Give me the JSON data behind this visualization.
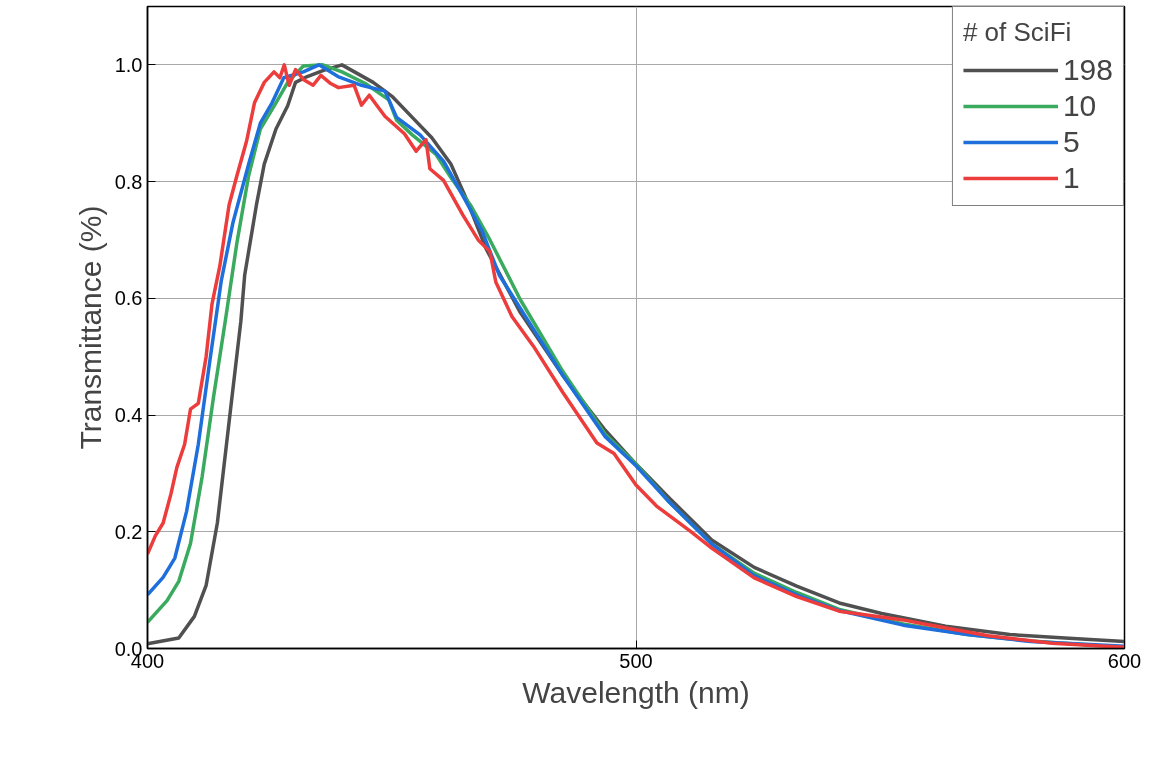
{
  "chart_data": {
    "type": "line",
    "xlabel": "Wavelength (nm)",
    "ylabel": "Transmittance (%)",
    "legend_title": "# of SciFi",
    "legend": "top right",
    "grid": true,
    "line_style": "solid",
    "marker": "none",
    "xlim": [
      400,
      600
    ],
    "ylim": [
      0,
      1.1
    ],
    "xticks": [
      400,
      500,
      600
    ],
    "yticks": [
      {
        "value": 0,
        "label": "0.0"
      },
      {
        "value": 0.2,
        "label": "0.2"
      },
      {
        "value": 0.4,
        "label": "0.4"
      },
      {
        "value": 0.6,
        "label": "0.6"
      },
      {
        "value": 0.8,
        "label": "0.8"
      },
      {
        "value": 1,
        "label": "1.0"
      }
    ],
    "series": [
      {
        "name": "198",
        "color": "#505050",
        "x": [
          400,
          406.4,
          409.6,
          412,
          414.3,
          416.7,
          419.1,
          419.9,
          422.3,
          423.9,
          426.3,
          428.7,
          430.3,
          432.7,
          435.9,
          439.8,
          443,
          446.2,
          450.2,
          454.2,
          458.2,
          462.1,
          465.3,
          469.3,
          476.3,
          485,
          493.7,
          500,
          506.8,
          515.5,
          524.2,
          532.9,
          541.6,
          550.3,
          563.4,
          576.5,
          589.5,
          600
        ],
        "values": [
          0.008,
          0.018,
          0.055,
          0.108,
          0.215,
          0.388,
          0.56,
          0.64,
          0.76,
          0.83,
          0.89,
          0.93,
          0.97,
          0.98,
          0.99,
          1.0,
          0.985,
          0.97,
          0.945,
          0.91,
          0.875,
          0.83,
          0.77,
          0.685,
          0.576,
          0.468,
          0.374,
          0.316,
          0.258,
          0.186,
          0.139,
          0.107,
          0.078,
          0.06,
          0.038,
          0.024,
          0.017,
          0.012
        ]
      },
      {
        "name": "10",
        "color": "#3aaa5e",
        "x": [
          400,
          404,
          406.4,
          408.8,
          411.2,
          413.5,
          415.9,
          418.3,
          420.7,
          423.1,
          426.3,
          428.7,
          431.9,
          435.9,
          439.8,
          444.6,
          449.4,
          451,
          454.2,
          459,
          462.1,
          466.1,
          470.1,
          476.3,
          485,
          493.7,
          500,
          506.8,
          515.5,
          524.2,
          532.9,
          541.6,
          554.7,
          567.8,
          580.8,
          600
        ],
        "values": [
          0.045,
          0.082,
          0.115,
          0.18,
          0.295,
          0.43,
          0.56,
          0.695,
          0.81,
          0.89,
          0.935,
          0.97,
          0.998,
          1.0,
          0.988,
          0.968,
          0.94,
          0.905,
          0.88,
          0.847,
          0.807,
          0.76,
          0.7,
          0.598,
          0.475,
          0.367,
          0.316,
          0.251,
          0.179,
          0.129,
          0.096,
          0.067,
          0.042,
          0.024,
          0.013,
          0.002
        ]
      },
      {
        "name": "5",
        "color": "#1e6fdc",
        "x": [
          400,
          403.2,
          405.6,
          408,
          410.4,
          412.8,
          415.1,
          417.5,
          420.7,
          423.1,
          425.5,
          427.9,
          431.9,
          435.1,
          439,
          443.8,
          448.6,
          451,
          455.8,
          460.6,
          464.6,
          468.5,
          472,
          476.3,
          485,
          493.7,
          500,
          506.8,
          515.5,
          524.2,
          532.9,
          541.6,
          554.7,
          567.8,
          580.8,
          600
        ],
        "values": [
          0.092,
          0.122,
          0.155,
          0.235,
          0.35,
          0.495,
          0.63,
          0.73,
          0.83,
          0.9,
          0.935,
          0.978,
          0.988,
          1.0,
          0.98,
          0.965,
          0.955,
          0.91,
          0.88,
          0.835,
          0.775,
          0.715,
          0.64,
          0.583,
          0.468,
          0.363,
          0.313,
          0.251,
          0.179,
          0.125,
          0.092,
          0.065,
          0.04,
          0.024,
          0.012,
          0.004
        ]
      },
      {
        "name": "1",
        "color": "#ec3c3c",
        "x": [
          400,
          401.6,
          403.2,
          404.8,
          406,
          407.6,
          408.8,
          410.4,
          412,
          413.2,
          414.8,
          416.7,
          418.3,
          420.3,
          421.9,
          423.9,
          425.9,
          427.1,
          428,
          429,
          430.3,
          431.9,
          433.9,
          435.5,
          437.5,
          439.1,
          442.3,
          443.8,
          445.4,
          448.6,
          452.6,
          455,
          457,
          457.8,
          460.6,
          464.6,
          467.7,
          470.1,
          471.3,
          474.6,
          479,
          485,
          492,
          495.5,
          500,
          504.2,
          511.1,
          515.5,
          524.2,
          532.9,
          541.6,
          554.7,
          559,
          572.1,
          585.2,
          600
        ],
        "values": [
          0.162,
          0.193,
          0.215,
          0.265,
          0.31,
          0.35,
          0.41,
          0.42,
          0.5,
          0.59,
          0.655,
          0.76,
          0.81,
          0.87,
          0.935,
          0.97,
          0.988,
          0.978,
          1.0,
          0.965,
          0.992,
          0.975,
          0.965,
          0.982,
          0.968,
          0.961,
          0.965,
          0.931,
          0.948,
          0.912,
          0.882,
          0.852,
          0.872,
          0.822,
          0.802,
          0.742,
          0.7,
          0.68,
          0.628,
          0.569,
          0.518,
          0.439,
          0.352,
          0.334,
          0.28,
          0.244,
          0.201,
          0.172,
          0.121,
          0.089,
          0.064,
          0.049,
          0.042,
          0.022,
          0.009,
          0.002
        ]
      }
    ]
  }
}
